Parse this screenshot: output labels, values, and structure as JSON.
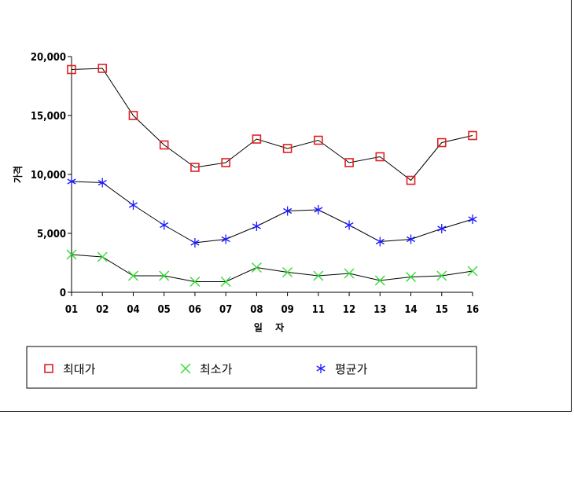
{
  "chart_data": {
    "type": "line",
    "categories": [
      "01",
      "02",
      "04",
      "05",
      "06",
      "07",
      "08",
      "09",
      "11",
      "12",
      "13",
      "14",
      "15",
      "16"
    ],
    "xlabel": "일 자",
    "ylabel": "가격",
    "ylim": [
      0,
      20000
    ],
    "yticks": [
      "0",
      "5,000",
      "10,000",
      "15,000",
      "20,000"
    ],
    "ytick_values": [
      0,
      5000,
      10000,
      15000,
      20000
    ],
    "grid": false,
    "legend_position": "bottom",
    "series": [
      {
        "name": "최대가",
        "marker": "square",
        "color": "#e02020",
        "values": [
          18900,
          19000,
          15000,
          12500,
          10600,
          11000,
          13000,
          12200,
          12900,
          11000,
          11500,
          9500,
          12700,
          13300
        ]
      },
      {
        "name": "최소가",
        "marker": "x",
        "color": "#33dd33",
        "values": [
          3200,
          3000,
          1400,
          1400,
          900,
          900,
          2100,
          1700,
          1400,
          1600,
          1000,
          1300,
          1400,
          1800
        ]
      },
      {
        "name": "평균가",
        "marker": "asterisk",
        "color": "#1a1aff",
        "values": [
          9400,
          9300,
          7400,
          5700,
          4200,
          4500,
          5600,
          6900,
          7000,
          5700,
          4300,
          4500,
          5400,
          6200
        ]
      }
    ]
  }
}
